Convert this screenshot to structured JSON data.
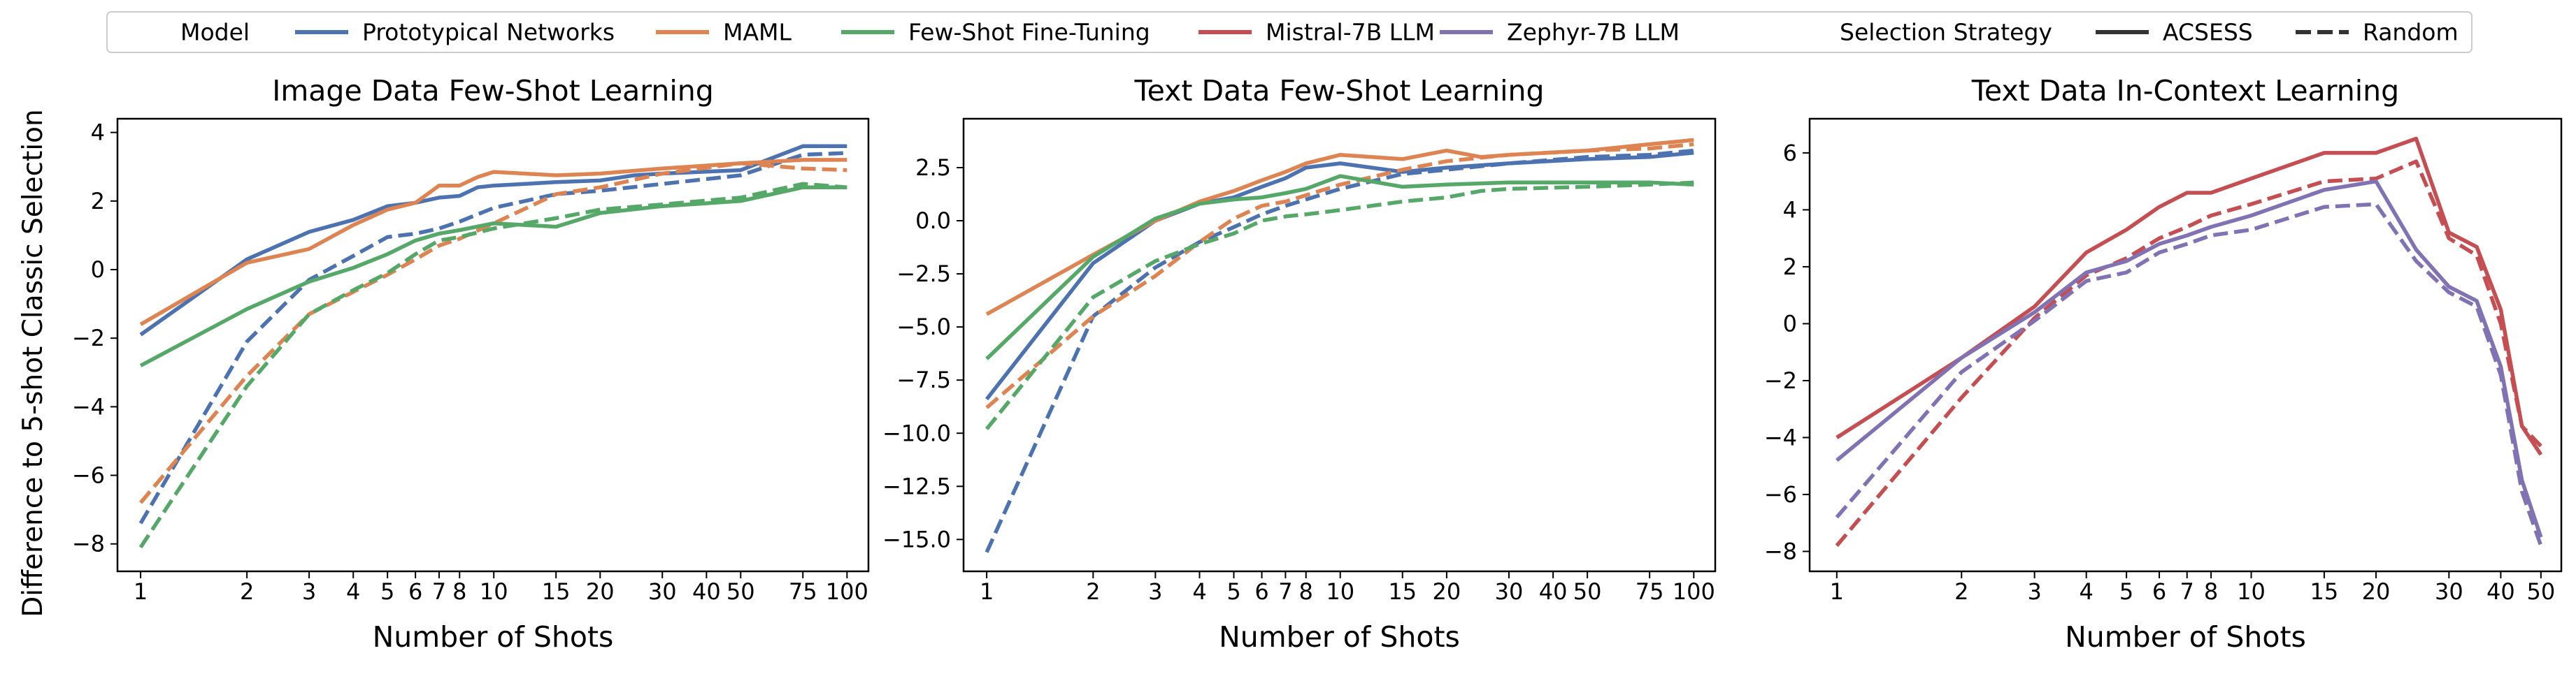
{
  "legend": {
    "header_model": "Model",
    "header_strategy": "Selection Strategy",
    "models": [
      {
        "name": "Prototypical Networks",
        "color": "#4c72b0"
      },
      {
        "name": "MAML",
        "color": "#dd8452"
      },
      {
        "name": "Few-Shot Fine-Tuning",
        "color": "#55a868"
      },
      {
        "name": "Mistral-7B LLM",
        "color": "#c44e52"
      },
      {
        "name": "Zephyr-7B LLM",
        "color": "#8172b3"
      }
    ],
    "strategies": [
      {
        "name": "ACSESS",
        "style": "solid"
      },
      {
        "name": "Random",
        "style": "dashed"
      }
    ]
  },
  "shared_ylabel": "Difference to 5-shot Classic Selection",
  "chart_data": [
    {
      "type": "line",
      "title": "Image Data Few-Shot Learning",
      "xlabel": "Number of Shots",
      "xscale": "log",
      "xlim": [
        0.86,
        115
      ],
      "ylim": [
        -8.8,
        4.4
      ],
      "xticks": [
        1,
        2,
        3,
        4,
        5,
        6,
        7,
        8,
        10,
        15,
        20,
        30,
        40,
        50,
        75,
        100
      ],
      "xticklabels": [
        "1",
        "2",
        "3",
        "4",
        "5",
        "6",
        "7",
        "8",
        "10",
        "15",
        "20",
        "30",
        "40",
        "50",
        "75",
        "100"
      ],
      "yticks": [
        -8,
        -6,
        -4,
        -2,
        0,
        2,
        4
      ],
      "yticklabels": [
        "−8",
        "−6",
        "−4",
        "−2",
        "0",
        "2",
        "4"
      ],
      "series": [
        {
          "name": "Prototypical Networks",
          "strategy": "ACSESS",
          "color": "#4c72b0",
          "x": [
            1,
            2,
            3,
            4,
            5,
            6,
            7,
            8,
            9,
            10,
            15,
            20,
            25,
            30,
            50,
            75,
            100
          ],
          "y": [
            -1.9,
            0.3,
            1.1,
            1.45,
            1.85,
            1.95,
            2.1,
            2.15,
            2.4,
            2.45,
            2.55,
            2.6,
            2.75,
            2.8,
            2.9,
            3.6,
            3.6
          ]
        },
        {
          "name": "Prototypical Networks",
          "strategy": "Random",
          "color": "#4c72b0",
          "x": [
            1,
            2,
            3,
            4,
            5,
            6,
            7,
            8,
            10,
            15,
            20,
            30,
            50,
            75,
            100
          ],
          "y": [
            -7.4,
            -2.1,
            -0.3,
            0.4,
            0.95,
            1.05,
            1.2,
            1.4,
            1.8,
            2.2,
            2.3,
            2.5,
            2.75,
            3.35,
            3.4
          ]
        },
        {
          "name": "MAML",
          "strategy": "ACSESS",
          "color": "#dd8452",
          "x": [
            1,
            2,
            3,
            4,
            5,
            6,
            7,
            8,
            9,
            10,
            15,
            20,
            30,
            50,
            75,
            100
          ],
          "y": [
            -1.6,
            0.2,
            0.6,
            1.3,
            1.75,
            1.95,
            2.45,
            2.45,
            2.7,
            2.85,
            2.75,
            2.8,
            2.95,
            3.1,
            3.2,
            3.2
          ]
        },
        {
          "name": "MAML",
          "strategy": "Random",
          "color": "#dd8452",
          "x": [
            1,
            2,
            3,
            4,
            5,
            6,
            7,
            8,
            10,
            15,
            20,
            30,
            50,
            75,
            100
          ],
          "y": [
            -6.8,
            -3.1,
            -1.3,
            -0.65,
            -0.15,
            0.3,
            0.7,
            0.9,
            1.35,
            2.2,
            2.4,
            2.8,
            3.1,
            2.95,
            2.9
          ]
        },
        {
          "name": "Few-Shot Fine-Tuning",
          "strategy": "ACSESS",
          "color": "#55a868",
          "x": [
            1,
            2,
            3,
            4,
            5,
            6,
            7,
            8,
            10,
            15,
            20,
            30,
            50,
            75,
            100
          ],
          "y": [
            -2.8,
            -1.15,
            -0.35,
            0.05,
            0.45,
            0.85,
            1.05,
            1.15,
            1.35,
            1.25,
            1.65,
            1.85,
            2.0,
            2.4,
            2.4
          ]
        },
        {
          "name": "Few-Shot Fine-Tuning",
          "strategy": "Random",
          "color": "#55a868",
          "x": [
            1,
            2,
            3,
            4,
            5,
            6,
            7,
            8,
            10,
            15,
            20,
            30,
            50,
            75,
            100
          ],
          "y": [
            -8.1,
            -3.4,
            -1.3,
            -0.6,
            -0.1,
            0.45,
            0.85,
            0.95,
            1.2,
            1.5,
            1.75,
            1.9,
            2.1,
            2.5,
            2.4
          ]
        }
      ]
    },
    {
      "type": "line",
      "title": "Text Data Few-Shot Learning",
      "xlabel": "Number of Shots",
      "xscale": "log",
      "xlim": [
        0.86,
        115
      ],
      "ylim": [
        -16.5,
        4.8
      ],
      "xticks": [
        1,
        2,
        3,
        4,
        5,
        6,
        7,
        8,
        10,
        15,
        20,
        30,
        40,
        50,
        75,
        100
      ],
      "xticklabels": [
        "1",
        "2",
        "3",
        "4",
        "5",
        "6",
        "7",
        "8",
        "10",
        "15",
        "20",
        "30",
        "40",
        "50",
        "75",
        "100"
      ],
      "yticks": [
        -15,
        -12.5,
        -10,
        -7.5,
        -5,
        -2.5,
        0,
        2.5
      ],
      "yticklabels": [
        "−15.0",
        "−12.5",
        "−10.0",
        "−7.5",
        "−5.0",
        "−2.5",
        "0.0",
        "2.5"
      ],
      "series": [
        {
          "name": "Prototypical Networks",
          "strategy": "ACSESS",
          "color": "#4c72b0",
          "x": [
            1,
            2,
            3,
            4,
            5,
            6,
            7,
            8,
            10,
            15,
            20,
            30,
            50,
            75,
            100
          ],
          "y": [
            -8.4,
            -2.0,
            0.0,
            0.8,
            1.1,
            1.6,
            2.0,
            2.5,
            2.7,
            2.3,
            2.5,
            2.7,
            2.9,
            3.0,
            3.2
          ]
        },
        {
          "name": "Prototypical Networks",
          "strategy": "Random",
          "color": "#4c72b0",
          "x": [
            1,
            2,
            3,
            4,
            5,
            6,
            7,
            8,
            10,
            15,
            20,
            30,
            50,
            75,
            100
          ],
          "y": [
            -15.6,
            -4.5,
            -2.2,
            -1.0,
            -0.3,
            0.3,
            0.7,
            1.0,
            1.5,
            2.2,
            2.4,
            2.7,
            3.0,
            3.1,
            3.3
          ]
        },
        {
          "name": "MAML",
          "strategy": "ACSESS",
          "color": "#dd8452",
          "x": [
            1,
            2,
            3,
            4,
            5,
            6,
            7,
            8,
            10,
            15,
            20,
            25,
            30,
            50,
            75,
            100
          ],
          "y": [
            -4.4,
            -1.6,
            0.0,
            0.9,
            1.4,
            1.9,
            2.3,
            2.7,
            3.1,
            2.9,
            3.3,
            3.0,
            3.1,
            3.3,
            3.6,
            3.8
          ]
        },
        {
          "name": "MAML",
          "strategy": "Random",
          "color": "#dd8452",
          "x": [
            1,
            2,
            3,
            4,
            5,
            6,
            7,
            8,
            10,
            15,
            20,
            30,
            50,
            75,
            100
          ],
          "y": [
            -8.8,
            -4.5,
            -2.6,
            -1.0,
            0.1,
            0.7,
            0.9,
            1.2,
            1.7,
            2.4,
            2.8,
            3.1,
            3.3,
            3.4,
            3.6
          ]
        },
        {
          "name": "Few-Shot Fine-Tuning",
          "strategy": "ACSESS",
          "color": "#55a868",
          "x": [
            1,
            2,
            3,
            4,
            5,
            6,
            7,
            8,
            10,
            15,
            20,
            30,
            50,
            75,
            100
          ],
          "y": [
            -6.5,
            -1.7,
            0.1,
            0.8,
            1.0,
            1.1,
            1.3,
            1.5,
            2.1,
            1.6,
            1.7,
            1.8,
            1.8,
            1.8,
            1.7
          ]
        },
        {
          "name": "Few-Shot Fine-Tuning",
          "strategy": "Random",
          "color": "#55a868",
          "x": [
            1,
            2,
            3,
            4,
            5,
            6,
            7,
            8,
            10,
            15,
            20,
            25,
            30,
            50,
            75,
            100
          ],
          "y": [
            -9.8,
            -3.6,
            -1.9,
            -1.1,
            -0.6,
            0.0,
            0.2,
            0.3,
            0.5,
            0.9,
            1.1,
            1.4,
            1.5,
            1.6,
            1.7,
            1.8
          ]
        }
      ]
    },
    {
      "type": "line",
      "title": "Text Data In-Context Learning",
      "xlabel": "Number of Shots",
      "xscale": "log",
      "xlim": [
        0.86,
        56
      ],
      "ylim": [
        -8.7,
        7.2
      ],
      "xticks": [
        1,
        2,
        3,
        4,
        5,
        6,
        7,
        8,
        10,
        15,
        20,
        30,
        40,
        50
      ],
      "xticklabels": [
        "1",
        "2",
        "3",
        "4",
        "5",
        "6",
        "7",
        "8",
        "10",
        "15",
        "20",
        "30",
        "40",
        "50"
      ],
      "yticks": [
        -8,
        -6,
        -4,
        -2,
        0,
        2,
        4,
        6
      ],
      "yticklabels": [
        "−8",
        "−6",
        "−4",
        "−2",
        "0",
        "2",
        "4",
        "6"
      ],
      "series": [
        {
          "name": "Mistral-7B LLM",
          "strategy": "ACSESS",
          "color": "#c44e52",
          "x": [
            1,
            2,
            3,
            4,
            5,
            6,
            7,
            8,
            10,
            15,
            20,
            25,
            30,
            35,
            40,
            45,
            50
          ],
          "y": [
            -4.0,
            -1.2,
            0.6,
            2.5,
            3.3,
            4.1,
            4.6,
            4.6,
            5.1,
            6.0,
            6.0,
            6.5,
            3.2,
            2.7,
            0.5,
            -3.6,
            -4.6
          ]
        },
        {
          "name": "Mistral-7B LLM",
          "strategy": "Random",
          "color": "#c44e52",
          "x": [
            1,
            2,
            3,
            4,
            5,
            6,
            7,
            8,
            10,
            15,
            20,
            25,
            30,
            35,
            40,
            45,
            50
          ],
          "y": [
            -7.8,
            -2.6,
            0.2,
            1.7,
            2.3,
            3.0,
            3.4,
            3.8,
            4.2,
            5.0,
            5.1,
            5.7,
            3.0,
            2.4,
            0.0,
            -3.6,
            -4.3
          ]
        },
        {
          "name": "Zephyr-7B LLM",
          "strategy": "ACSESS",
          "color": "#8172b3",
          "x": [
            1,
            2,
            3,
            4,
            5,
            6,
            7,
            8,
            10,
            15,
            20,
            25,
            30,
            35,
            40,
            45,
            50
          ],
          "y": [
            -4.8,
            -1.2,
            0.4,
            1.8,
            2.2,
            2.8,
            3.1,
            3.4,
            3.8,
            4.7,
            5.0,
            2.6,
            1.3,
            0.8,
            -1.5,
            -5.5,
            -7.5
          ]
        },
        {
          "name": "Zephyr-7B LLM",
          "strategy": "Random",
          "color": "#8172b3",
          "x": [
            1,
            2,
            3,
            4,
            5,
            6,
            7,
            8,
            10,
            15,
            20,
            25,
            30,
            35,
            40,
            45,
            50
          ],
          "y": [
            -6.8,
            -1.7,
            0.1,
            1.5,
            1.8,
            2.5,
            2.8,
            3.1,
            3.3,
            4.1,
            4.2,
            2.2,
            1.1,
            0.6,
            -1.8,
            -5.9,
            -7.8
          ]
        }
      ]
    }
  ]
}
